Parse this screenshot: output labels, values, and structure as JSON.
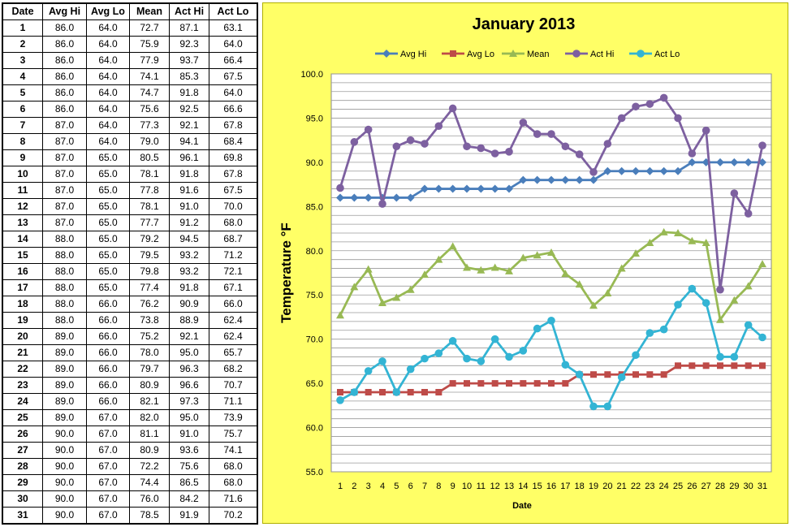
{
  "table": {
    "headers": [
      "Date",
      "Avg Hi",
      "Avg Lo",
      "Mean",
      "Act Hi",
      "Act Lo"
    ],
    "rows": [
      [
        "1",
        "86.0",
        "64.0",
        "72.7",
        "87.1",
        "63.1"
      ],
      [
        "2",
        "86.0",
        "64.0",
        "75.9",
        "92.3",
        "64.0"
      ],
      [
        "3",
        "86.0",
        "64.0",
        "77.9",
        "93.7",
        "66.4"
      ],
      [
        "4",
        "86.0",
        "64.0",
        "74.1",
        "85.3",
        "67.5"
      ],
      [
        "5",
        "86.0",
        "64.0",
        "74.7",
        "91.8",
        "64.0"
      ],
      [
        "6",
        "86.0",
        "64.0",
        "75.6",
        "92.5",
        "66.6"
      ],
      [
        "7",
        "87.0",
        "64.0",
        "77.3",
        "92.1",
        "67.8"
      ],
      [
        "8",
        "87.0",
        "64.0",
        "79.0",
        "94.1",
        "68.4"
      ],
      [
        "9",
        "87.0",
        "65.0",
        "80.5",
        "96.1",
        "69.8"
      ],
      [
        "10",
        "87.0",
        "65.0",
        "78.1",
        "91.8",
        "67.8"
      ],
      [
        "11",
        "87.0",
        "65.0",
        "77.8",
        "91.6",
        "67.5"
      ],
      [
        "12",
        "87.0",
        "65.0",
        "78.1",
        "91.0",
        "70.0"
      ],
      [
        "13",
        "87.0",
        "65.0",
        "77.7",
        "91.2",
        "68.0"
      ],
      [
        "14",
        "88.0",
        "65.0",
        "79.2",
        "94.5",
        "68.7"
      ],
      [
        "15",
        "88.0",
        "65.0",
        "79.5",
        "93.2",
        "71.2"
      ],
      [
        "16",
        "88.0",
        "65.0",
        "79.8",
        "93.2",
        "72.1"
      ],
      [
        "17",
        "88.0",
        "65.0",
        "77.4",
        "91.8",
        "67.1"
      ],
      [
        "18",
        "88.0",
        "66.0",
        "76.2",
        "90.9",
        "66.0"
      ],
      [
        "19",
        "88.0",
        "66.0",
        "73.8",
        "88.9",
        "62.4"
      ],
      [
        "20",
        "89.0",
        "66.0",
        "75.2",
        "92.1",
        "62.4"
      ],
      [
        "21",
        "89.0",
        "66.0",
        "78.0",
        "95.0",
        "65.7"
      ],
      [
        "22",
        "89.0",
        "66.0",
        "79.7",
        "96.3",
        "68.2"
      ],
      [
        "23",
        "89.0",
        "66.0",
        "80.9",
        "96.6",
        "70.7"
      ],
      [
        "24",
        "89.0",
        "66.0",
        "82.1",
        "97.3",
        "71.1"
      ],
      [
        "25",
        "89.0",
        "67.0",
        "82.0",
        "95.0",
        "73.9"
      ],
      [
        "26",
        "90.0",
        "67.0",
        "81.1",
        "91.0",
        "75.7"
      ],
      [
        "27",
        "90.0",
        "67.0",
        "80.9",
        "93.6",
        "74.1"
      ],
      [
        "28",
        "90.0",
        "67.0",
        "72.2",
        "75.6",
        "68.0"
      ],
      [
        "29",
        "90.0",
        "67.0",
        "74.4",
        "86.5",
        "68.0"
      ],
      [
        "30",
        "90.0",
        "67.0",
        "76.0",
        "84.2",
        "71.6"
      ],
      [
        "31",
        "90.0",
        "67.0",
        "78.5",
        "91.9",
        "70.2"
      ]
    ]
  },
  "chart_data": {
    "type": "line",
    "title": "January 2013",
    "xlabel": "Date",
    "ylabel": "Temperature °F",
    "x": [
      1,
      2,
      3,
      4,
      5,
      6,
      7,
      8,
      9,
      10,
      11,
      12,
      13,
      14,
      15,
      16,
      17,
      18,
      19,
      20,
      21,
      22,
      23,
      24,
      25,
      26,
      27,
      28,
      29,
      30,
      31
    ],
    "ylim": [
      55.0,
      100.0
    ],
    "ytick_step": 5.0,
    "yticks": [
      "55.0",
      "60.0",
      "65.0",
      "70.0",
      "75.0",
      "80.0",
      "85.0",
      "90.0",
      "95.0",
      "100.0"
    ],
    "grid": true,
    "legend_position": "top",
    "series": [
      {
        "name": "Avg Hi",
        "color": "#4a7ebb",
        "marker": "diamond",
        "values": [
          86.0,
          86.0,
          86.0,
          86.0,
          86.0,
          86.0,
          87.0,
          87.0,
          87.0,
          87.0,
          87.0,
          87.0,
          87.0,
          88.0,
          88.0,
          88.0,
          88.0,
          88.0,
          88.0,
          89.0,
          89.0,
          89.0,
          89.0,
          89.0,
          89.0,
          90.0,
          90.0,
          90.0,
          90.0,
          90.0,
          90.0
        ]
      },
      {
        "name": "Avg Lo",
        "color": "#be4b48",
        "marker": "square",
        "values": [
          64.0,
          64.0,
          64.0,
          64.0,
          64.0,
          64.0,
          64.0,
          64.0,
          65.0,
          65.0,
          65.0,
          65.0,
          65.0,
          65.0,
          65.0,
          65.0,
          65.0,
          66.0,
          66.0,
          66.0,
          66.0,
          66.0,
          66.0,
          66.0,
          67.0,
          67.0,
          67.0,
          67.0,
          67.0,
          67.0,
          67.0
        ]
      },
      {
        "name": "Mean",
        "color": "#98b954",
        "marker": "triangle",
        "values": [
          72.7,
          75.9,
          77.9,
          74.1,
          74.7,
          75.6,
          77.3,
          79.0,
          80.5,
          78.1,
          77.8,
          78.1,
          77.7,
          79.2,
          79.5,
          79.8,
          77.4,
          76.2,
          73.8,
          75.2,
          78.0,
          79.7,
          80.9,
          82.1,
          82.0,
          81.1,
          80.9,
          72.2,
          74.4,
          76.0,
          78.5
        ]
      },
      {
        "name": "Act Hi",
        "color": "#7d60a0",
        "marker": "circle",
        "values": [
          87.1,
          92.3,
          93.7,
          85.3,
          91.8,
          92.5,
          92.1,
          94.1,
          96.1,
          91.8,
          91.6,
          91.0,
          91.2,
          94.5,
          93.2,
          93.2,
          91.8,
          90.9,
          88.9,
          92.1,
          95.0,
          96.3,
          96.6,
          97.3,
          95.0,
          91.0,
          93.6,
          75.6,
          86.5,
          84.2,
          91.9
        ]
      },
      {
        "name": "Act Lo",
        "color": "#33b4d4",
        "marker": "circle",
        "values": [
          63.1,
          64.0,
          66.4,
          67.5,
          64.0,
          66.6,
          67.8,
          68.4,
          69.8,
          67.8,
          67.5,
          70.0,
          68.0,
          68.7,
          71.2,
          72.1,
          67.1,
          66.0,
          62.4,
          62.4,
          65.7,
          68.2,
          70.7,
          71.1,
          73.9,
          75.7,
          74.1,
          68.0,
          68.0,
          71.6,
          70.2
        ]
      }
    ],
    "background": "#ffff66",
    "plot_background": "#ffffff"
  }
}
